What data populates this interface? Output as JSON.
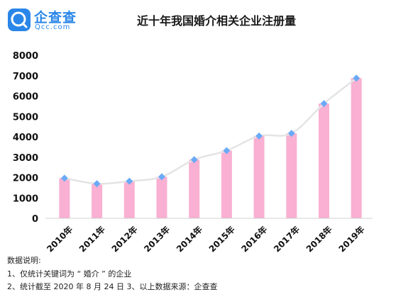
{
  "logo": {
    "name": "企查查",
    "sub": "Qcc.com"
  },
  "chart_data": {
    "type": "bar",
    "title": "近十年我国婚介相关企业注册量",
    "categories": [
      "2010年",
      "2011年",
      "2012年",
      "2013年",
      "2014年",
      "2015年",
      "2016年",
      "2017年",
      "2018年",
      "2019年"
    ],
    "values": [
      1970,
      1700,
      1820,
      2040,
      2880,
      3320,
      4040,
      4170,
      5630,
      6880
    ],
    "ylim": [
      0,
      8000
    ],
    "yticks": [
      0,
      1000,
      2000,
      3000,
      4000,
      5000,
      6000,
      7000,
      8000
    ],
    "grid": false,
    "overlay": "smooth-line-with-diamond-markers",
    "colors": {
      "bar": "#f9b0d2",
      "marker": "#6aaaf6",
      "line": "#e4e4e4"
    }
  },
  "notes": {
    "heading": "数据说明:",
    "line1": "1、仅统计关键词为 “ 婚介 ” 的企业",
    "line2": "2、统计截至 2020 年 8 月 24 日   3、以上数据来源：企查查"
  }
}
